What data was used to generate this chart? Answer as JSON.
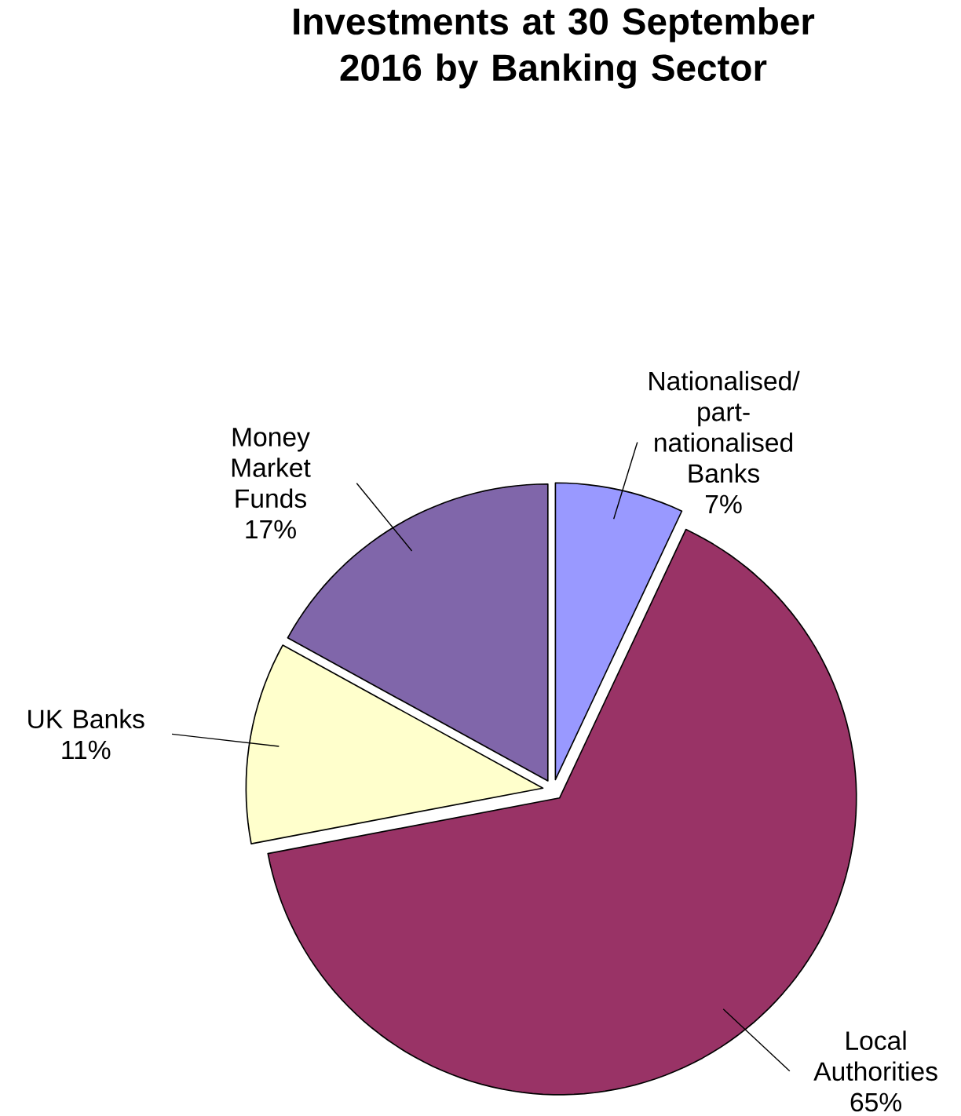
{
  "chart_data": {
    "type": "pie",
    "title": "Investments at 30 September 2016 by Banking Sector",
    "categories": [
      "Nationalised/ part-nationalised Banks",
      "Local Authorities",
      "UK Banks",
      "Money Market Funds"
    ],
    "values": [
      7,
      65,
      11,
      17
    ],
    "value_labels": [
      "7%",
      "65%",
      "11%",
      "17%"
    ],
    "colors": [
      "#9999ff",
      "#993366",
      "#ffffcc",
      "#8066aa"
    ]
  }
}
